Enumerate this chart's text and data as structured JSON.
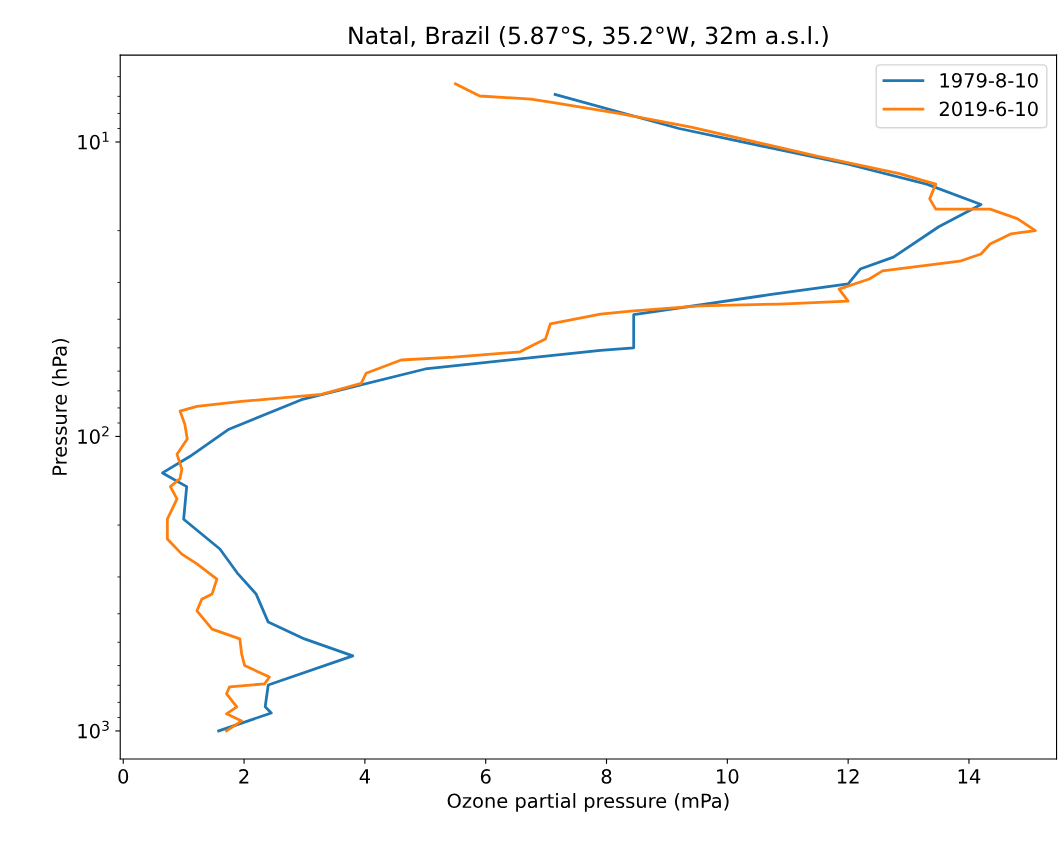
{
  "chart_data": {
    "type": "line",
    "title": "Natal, Brazil (5.87°S, 35.2°W, 32m a.s.l.)",
    "xlabel": "Ozone partial pressure (mPa)",
    "ylabel": "Pressure (hPa)",
    "log": "y",
    "xlim": [
      -0.05,
      15.45
    ],
    "xticks": [
      0,
      2,
      4,
      6,
      8,
      10,
      12,
      14
    ],
    "ylim": [
      1245,
      5.07
    ],
    "yticks": [
      {
        "value": 10,
        "label": "10$^{1}$"
      },
      {
        "value": 100,
        "label": "10$^{2}$"
      },
      {
        "value": 1000,
        "label": "10$^{3}$"
      }
    ],
    "legend": "top right",
    "grid": false,
    "line_style": "solid",
    "marker": "none",
    "series": [
      {
        "name": "1979-8-10",
        "color": "#1f77b4",
        "x": [
          1.58,
          2.45,
          2.35,
          2.4,
          3.8,
          3.0,
          2.4,
          2.2,
          1.9,
          1.6,
          1.0,
          1.05,
          0.65,
          1.1,
          1.75,
          2.95,
          5.0,
          7.9,
          8.45,
          8.45,
          10.7,
          12.0,
          12.2,
          12.75,
          13.5,
          14.2,
          13.3,
          12.0,
          9.2,
          7.15
        ],
        "values": [
          1000,
          869,
          828,
          698,
          556,
          487,
          427,
          343,
          293,
          241,
          191,
          148,
          133,
          117,
          94.5,
          75,
          59,
          51,
          50,
          38.6,
          33,
          30.3,
          27,
          24.6,
          19.4,
          16.3,
          13.9,
          11.9,
          9.0,
          6.9
        ]
      },
      {
        "name": "2019-6-10",
        "color": "#ff7f0e",
        "x": [
          1.71,
          1.96,
          1.71,
          1.88,
          1.71,
          1.76,
          2.34,
          2.42,
          2.01,
          1.96,
          1.93,
          1.47,
          1.22,
          1.3,
          1.47,
          1.55,
          1.22,
          0.97,
          0.73,
          0.73,
          0.89,
          0.78,
          0.94,
          0.97,
          0.89,
          1.06,
          1.02,
          0.94,
          1.22,
          1.96,
          3.28,
          3.94,
          4.02,
          4.6,
          5.47,
          6.57,
          6.82,
          6.99,
          7.07,
          7.9,
          8.4,
          9.55,
          10.87,
          12.0,
          11.85,
          12.35,
          12.57,
          13.85,
          14.2,
          14.35,
          14.7,
          15.1,
          14.8,
          14.35,
          13.45,
          13.35,
          13.45,
          12.85,
          11.5,
          9.4,
          8.2,
          7.2,
          6.75,
          5.9,
          5.5
        ],
        "values": [
          1000,
          925,
          875,
          828,
          748,
          708,
          692,
          656,
          600,
          548,
          487,
          451,
          391,
          357,
          343,
          305,
          271,
          251,
          223,
          191,
          163,
          148,
          139,
          129,
          115,
          102,
          91,
          82,
          79,
          76,
          72,
          66,
          61,
          55,
          53.8,
          51.6,
          48.5,
          46.7,
          41.5,
          38.4,
          37.5,
          36,
          35.5,
          34.7,
          31.6,
          29.2,
          27.4,
          25.4,
          24,
          22.2,
          20.5,
          20,
          18.2,
          16.9,
          16.9,
          15.6,
          13.9,
          12.8,
          11.2,
          8.9,
          8.0,
          7.4,
          7.15,
          6.98,
          6.35
        ]
      }
    ]
  }
}
